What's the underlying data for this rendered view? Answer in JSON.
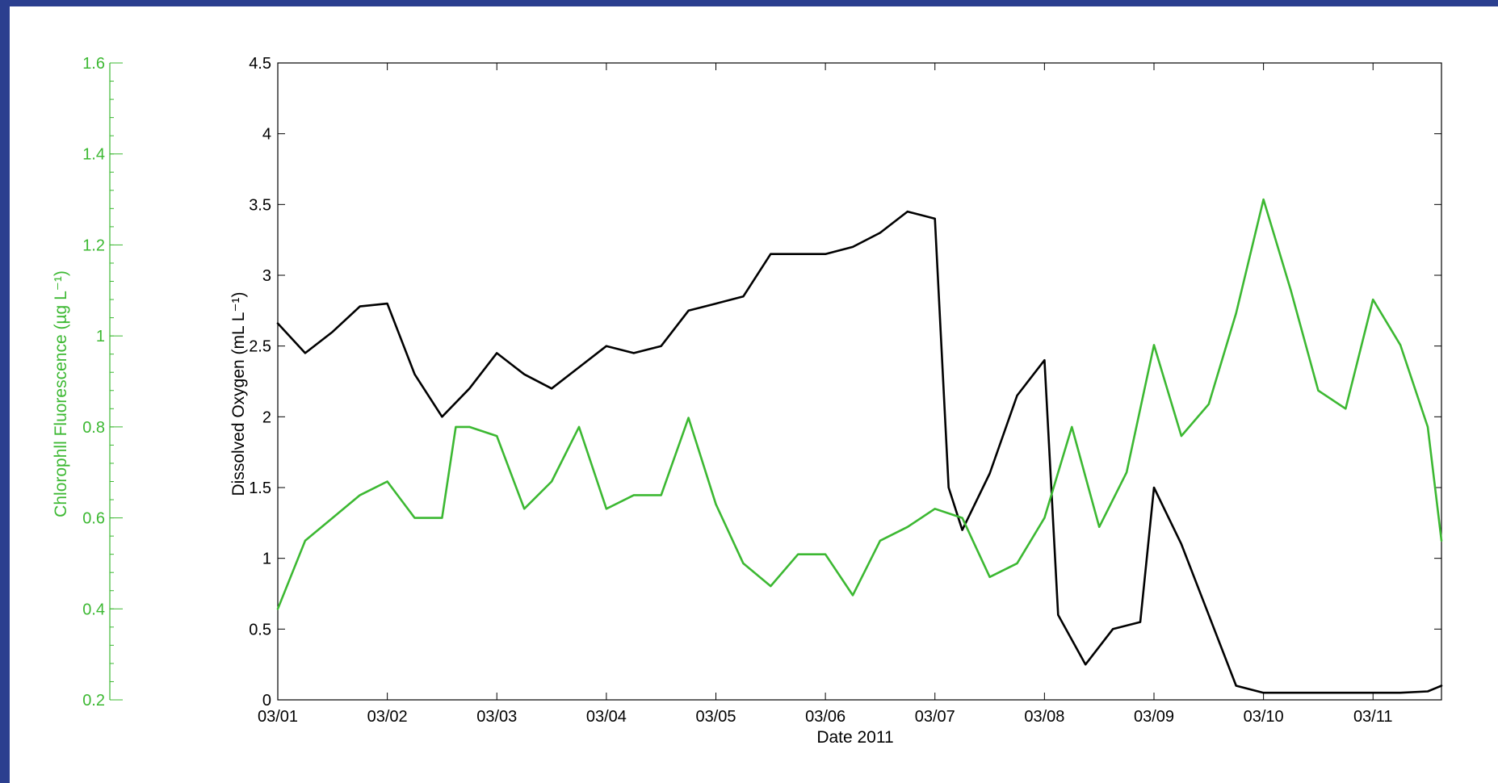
{
  "colors": {
    "background_border": "#2b3f8f",
    "oxygen_series": "#000000",
    "chlorophyll_series": "#3cb832"
  },
  "chart_data": {
    "type": "line",
    "xlabel": "Date 2011",
    "x_ticks": [
      "03/01",
      "03/02",
      "03/03",
      "03/04",
      "03/05",
      "03/06",
      "03/07",
      "03/08",
      "03/09",
      "03/10",
      "03/11"
    ],
    "xlim": [
      "03/01 00:00",
      "03/11 15:00"
    ],
    "left_axis": {
      "label": "Chlorophll Fluorescence (µg L⁻¹)",
      "ticks": [
        "0.2",
        "0.4",
        "0.6",
        "0.8",
        "1",
        "1.2",
        "1.4",
        "1.6"
      ],
      "ylim": [
        0.2,
        1.6
      ],
      "color": "#3cb832"
    },
    "right_axis": {
      "label": "Dissolved Oxygen (mL L⁻¹)",
      "ticks": [
        "0",
        "0.5",
        "1",
        "1.5",
        "2",
        "2.5",
        "3",
        "3.5",
        "4",
        "4.5"
      ],
      "ylim": [
        0,
        4.5
      ],
      "color": "#000000"
    },
    "series": [
      {
        "axis": "oxygen",
        "color": "#000000",
        "x": [
          "03/01 00:00",
          "03/01 06:00",
          "03/01 12:00",
          "03/01 18:00",
          "03/02 00:00",
          "03/02 06:00",
          "03/02 12:00",
          "03/02 18:00",
          "03/03 00:00",
          "03/03 06:00",
          "03/03 12:00",
          "03/03 18:00",
          "03/04 00:00",
          "03/04 06:00",
          "03/04 12:00",
          "03/04 18:00",
          "03/05 00:00",
          "03/05 06:00",
          "03/05 12:00",
          "03/05 18:00",
          "03/06 00:00",
          "03/06 06:00",
          "03/06 12:00",
          "03/06 18:00",
          "03/07 00:00",
          "03/07 03:00",
          "03/07 06:00",
          "03/07 12:00",
          "03/07 18:00",
          "03/08 00:00",
          "03/08 03:00",
          "03/08 09:00",
          "03/08 15:00",
          "03/08 21:00",
          "03/09 00:00",
          "03/09 06:00",
          "03/09 12:00",
          "03/09 18:00",
          "03/10 00:00",
          "03/10 06:00",
          "03/10 12:00",
          "03/10 18:00",
          "03/11 00:00",
          "03/11 06:00",
          "03/11 12:00",
          "03/11 15:00"
        ],
        "y": [
          2.66,
          2.45,
          2.6,
          2.78,
          2.8,
          2.3,
          2.0,
          2.2,
          2.45,
          2.3,
          2.2,
          2.35,
          2.5,
          2.45,
          2.5,
          2.75,
          2.8,
          2.85,
          3.15,
          3.15,
          3.15,
          3.2,
          3.3,
          3.45,
          3.4,
          1.5,
          1.2,
          1.6,
          2.15,
          2.4,
          0.6,
          0.25,
          0.5,
          0.55,
          1.5,
          1.1,
          0.6,
          0.1,
          0.05,
          0.05,
          0.05,
          0.05,
          0.05,
          0.05,
          0.06,
          0.1
        ]
      },
      {
        "axis": "chlorophyll",
        "color": "#3cb832",
        "x": [
          "03/01 00:00",
          "03/01 06:00",
          "03/01 12:00",
          "03/01 18:00",
          "03/02 00:00",
          "03/02 06:00",
          "03/02 12:00",
          "03/02 15:00",
          "03/02 18:00",
          "03/03 00:00",
          "03/03 06:00",
          "03/03 12:00",
          "03/03 18:00",
          "03/04 00:00",
          "03/04 06:00",
          "03/04 12:00",
          "03/04 18:00",
          "03/05 00:00",
          "03/05 06:00",
          "03/05 12:00",
          "03/05 18:00",
          "03/06 00:00",
          "03/06 06:00",
          "03/06 12:00",
          "03/06 18:00",
          "03/07 00:00",
          "03/07 06:00",
          "03/07 12:00",
          "03/07 18:00",
          "03/08 00:00",
          "03/08 06:00",
          "03/08 12:00",
          "03/08 18:00",
          "03/09 00:00",
          "03/09 06:00",
          "03/09 12:00",
          "03/09 18:00",
          "03/10 00:00",
          "03/10 06:00",
          "03/10 12:00",
          "03/10 18:00",
          "03/11 00:00",
          "03/11 06:00",
          "03/11 12:00",
          "03/11 15:00"
        ],
        "y": [
          0.4,
          0.55,
          0.6,
          0.65,
          0.68,
          0.6,
          0.6,
          0.8,
          0.8,
          0.78,
          0.62,
          0.68,
          0.8,
          0.62,
          0.65,
          0.65,
          0.82,
          0.63,
          0.5,
          0.45,
          0.52,
          0.52,
          0.43,
          0.55,
          0.58,
          0.62,
          0.6,
          0.47,
          0.5,
          0.6,
          0.8,
          0.58,
          0.7,
          0.98,
          0.78,
          0.85,
          1.05,
          1.3,
          1.1,
          0.88,
          0.84,
          1.08,
          0.98,
          0.8,
          0.55
        ]
      }
    ],
    "grid": false
  }
}
